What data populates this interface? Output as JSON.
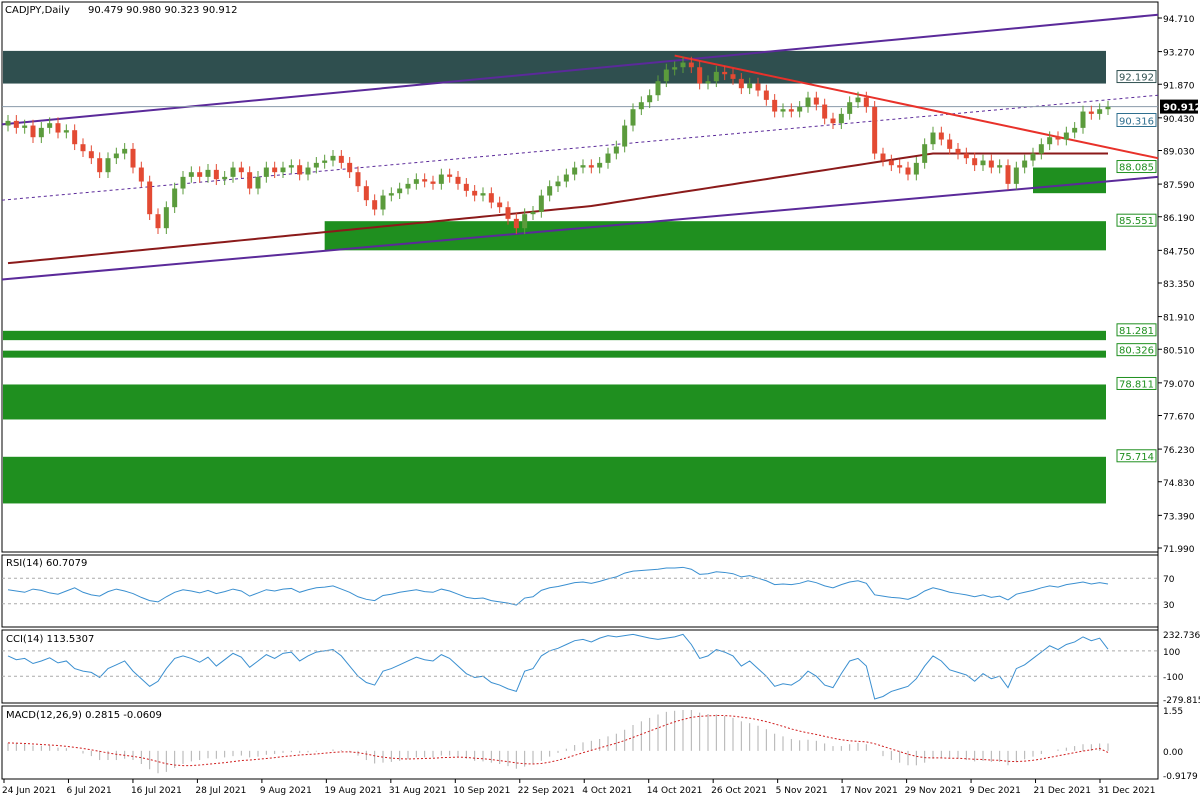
{
  "header": {
    "symbol": "CADJPY,Daily",
    "ohlc": "90.479 90.980 90.323 90.912"
  },
  "colors": {
    "bull": "#5b9b3c",
    "bear": "#e34a33",
    "zone": "#1f8f1f",
    "zone_dark": "#2f4f4f",
    "channel": "#5b2a9a",
    "trend": "#e8312a",
    "ma": "#8b1a1a",
    "rsi": "#3a8fd0",
    "macd_signal": "#d02020",
    "macd_hist": "#b0b0b0"
  },
  "chart_data": [
    {
      "type": "candlestick",
      "title": "CADJPY,Daily 90.479 90.980 90.323 90.912",
      "ylim": [
        71.99,
        95.4
      ],
      "y_ticks": [
        "94.710",
        "93.270",
        "91.870",
        "90.430",
        "89.030",
        "87.590",
        "86.190",
        "84.750",
        "83.350",
        "81.910",
        "80.510",
        "79.070",
        "77.670",
        "76.230",
        "74.830",
        "73.390",
        "71.990"
      ],
      "x_ticks": [
        "24 Jun 2021",
        "6 Jul 2021",
        "16 Jul 2021",
        "28 Jul 2021",
        "9 Aug 2021",
        "19 Aug 2021",
        "31 Aug 2021",
        "10 Sep 2021",
        "22 Sep 2021",
        "4 Oct 2021",
        "14 Oct 2021",
        "26 Oct 2021",
        "5 Nov 2021",
        "17 Nov 2021",
        "29 Nov 2021",
        "9 Dec 2021",
        "21 Dec 2021",
        "31 Dec 2021"
      ],
      "current_price": "90.912",
      "closes": [
        90.3,
        90.0,
        90.1,
        89.6,
        90.0,
        90.2,
        89.8,
        89.9,
        89.3,
        89.0,
        88.7,
        88.1,
        88.7,
        88.9,
        89.1,
        88.3,
        87.7,
        86.3,
        85.7,
        86.6,
        87.4,
        87.9,
        88.1,
        87.9,
        88.2,
        87.8,
        87.9,
        88.3,
        88.1,
        87.4,
        87.9,
        88.3,
        88.1,
        88.3,
        88.4,
        88.0,
        88.3,
        88.5,
        88.6,
        88.8,
        88.5,
        88.1,
        87.5,
        86.9,
        86.5,
        87.1,
        87.2,
        87.4,
        87.6,
        87.8,
        87.7,
        87.6,
        88.0,
        87.9,
        87.6,
        87.3,
        87.1,
        87.2,
        86.8,
        86.6,
        86.1,
        85.7,
        86.3,
        86.4,
        87.1,
        87.5,
        87.7,
        88.0,
        88.3,
        88.4,
        88.3,
        88.5,
        88.9,
        89.2,
        90.1,
        90.8,
        91.1,
        91.4,
        92.0,
        92.5,
        92.6,
        92.8,
        92.6,
        91.9,
        92.0,
        92.4,
        92.3,
        92.1,
        91.7,
        91.9,
        91.6,
        91.2,
        90.7,
        90.8,
        90.7,
        90.9,
        91.3,
        91.0,
        90.4,
        90.2,
        90.6,
        91.1,
        91.3,
        90.9,
        88.9,
        88.6,
        88.4,
        88.3,
        88.0,
        88.5,
        89.3,
        89.8,
        89.5,
        89.1,
        88.9,
        88.7,
        88.4,
        88.6,
        88.3,
        88.4,
        87.6,
        88.3,
        88.6,
        88.9,
        89.3,
        89.6,
        89.5,
        89.8,
        90.0,
        90.7,
        90.6,
        90.8,
        90.9
      ],
      "zones": [
        {
          "label": "92.192",
          "y1": 93.3,
          "y2": 91.9,
          "tone": "dark"
        },
        {
          "label": "88.085",
          "y1": 88.3,
          "y2": 87.2,
          "tone": "green",
          "start_index": 123
        },
        {
          "label": "85.551",
          "y1": 86.0,
          "y2": 84.75,
          "tone": "green",
          "start_index": 38
        },
        {
          "label": "81.281",
          "y1": 81.3,
          "y2": 80.9,
          "tone": "green"
        },
        {
          "label": "80.326",
          "y1": 80.45,
          "y2": 80.15,
          "tone": "green"
        },
        {
          "label": "78.811",
          "y1": 79.0,
          "y2": 77.5,
          "tone": "green"
        },
        {
          "label": "75.714",
          "y1": 75.9,
          "y2": 73.9,
          "tone": "green"
        }
      ],
      "price_labels": [
        "90.316"
      ]
    },
    {
      "type": "line",
      "title": "RSI(14) 60.7079",
      "ylim": [
        0,
        100
      ],
      "y_ticks": [
        "70",
        "30"
      ],
      "values": [
        52,
        50,
        48,
        53,
        51,
        47,
        45,
        50,
        55,
        48,
        44,
        42,
        49,
        53,
        50,
        46,
        40,
        35,
        33,
        41,
        48,
        52,
        50,
        47,
        51,
        46,
        49,
        53,
        50,
        42,
        47,
        52,
        50,
        53,
        54,
        48,
        52,
        55,
        56,
        58,
        53,
        48,
        41,
        37,
        35,
        43,
        45,
        48,
        50,
        52,
        49,
        48,
        53,
        50,
        45,
        40,
        38,
        39,
        35,
        33,
        31,
        28,
        39,
        41,
        51,
        55,
        57,
        60,
        63,
        64,
        62,
        65,
        69,
        72,
        78,
        81,
        82,
        83,
        84,
        86,
        86,
        87,
        84,
        76,
        77,
        80,
        79,
        77,
        72,
        74,
        70,
        66,
        60,
        61,
        60,
        62,
        66,
        63,
        58,
        55,
        60,
        64,
        66,
        62,
        44,
        42,
        40,
        39,
        37,
        42,
        50,
        55,
        52,
        48,
        46,
        44,
        41,
        44,
        40,
        42,
        36,
        45,
        48,
        51,
        55,
        58,
        56,
        60,
        62,
        64,
        61,
        63,
        61
      ]
    },
    {
      "type": "line",
      "title": "CCI(14) 113.5307",
      "ylim": [
        -279.815,
        232.7362
      ],
      "y_ticks": [
        "232.7362",
        "100",
        "-100",
        "-279.815"
      ],
      "values": [
        60,
        30,
        40,
        0,
        20,
        45,
        5,
        20,
        -40,
        -60,
        -70,
        -110,
        -40,
        -10,
        20,
        -60,
        -120,
        -180,
        -140,
        -40,
        40,
        60,
        40,
        10,
        50,
        -20,
        30,
        80,
        50,
        -30,
        20,
        70,
        40,
        80,
        90,
        20,
        60,
        90,
        100,
        110,
        60,
        -20,
        -100,
        -150,
        -170,
        -60,
        -40,
        -10,
        20,
        50,
        30,
        20,
        70,
        40,
        -20,
        -80,
        -110,
        -100,
        -150,
        -170,
        -200,
        -220,
        -60,
        -40,
        60,
        100,
        120,
        150,
        180,
        190,
        170,
        200,
        220,
        210,
        220,
        230,
        215,
        200,
        190,
        200,
        210,
        230,
        150,
        40,
        60,
        110,
        90,
        60,
        -20,
        20,
        -40,
        -100,
        -180,
        -160,
        -170,
        -130,
        -60,
        -100,
        -170,
        -190,
        -80,
        20,
        40,
        -20,
        -280,
        -260,
        -220,
        -200,
        -180,
        -120,
        -20,
        60,
        20,
        -50,
        -70,
        -90,
        -140,
        -80,
        -120,
        -100,
        -190,
        -40,
        -10,
        40,
        90,
        140,
        110,
        150,
        170,
        210,
        180,
        200,
        113
      ]
    },
    {
      "type": "bar",
      "title": "MACD(12,26,9) 0.2815 -0.0609",
      "ylim": [
        -0.9179,
        1.55
      ],
      "y_ticks": [
        "1.55",
        "0.00",
        "-0.9179"
      ],
      "series": [
        {
          "name": "histogram"
        },
        {
          "name": "signal"
        }
      ],
      "histogram": [
        0.3,
        0.3,
        0.28,
        0.2,
        0.2,
        0.2,
        0.12,
        0.1,
        0.0,
        -0.1,
        -0.2,
        -0.35,
        -0.35,
        -0.35,
        -0.3,
        -0.35,
        -0.5,
        -0.7,
        -0.85,
        -0.8,
        -0.65,
        -0.5,
        -0.4,
        -0.35,
        -0.28,
        -0.3,
        -0.25,
        -0.2,
        -0.18,
        -0.25,
        -0.22,
        -0.15,
        -0.12,
        -0.08,
        -0.05,
        -0.08,
        -0.06,
        -0.03,
        0.0,
        0.05,
        0.03,
        -0.05,
        -0.18,
        -0.35,
        -0.48,
        -0.45,
        -0.42,
        -0.38,
        -0.32,
        -0.25,
        -0.25,
        -0.25,
        -0.18,
        -0.18,
        -0.22,
        -0.3,
        -0.38,
        -0.4,
        -0.45,
        -0.5,
        -0.58,
        -0.68,
        -0.6,
        -0.52,
        -0.38,
        -0.22,
        -0.08,
        0.08,
        0.22,
        0.32,
        0.38,
        0.45,
        0.55,
        0.65,
        0.8,
        0.98,
        1.12,
        1.25,
        1.38,
        1.48,
        1.52,
        1.55,
        1.55,
        1.45,
        1.4,
        1.38,
        1.32,
        1.25,
        1.12,
        1.05,
        0.95,
        0.82,
        0.65,
        0.55,
        0.45,
        0.4,
        0.42,
        0.38,
        0.28,
        0.18,
        0.18,
        0.25,
        0.3,
        0.25,
        0.0,
        -0.2,
        -0.35,
        -0.45,
        -0.55,
        -0.55,
        -0.45,
        -0.3,
        -0.25,
        -0.28,
        -0.3,
        -0.35,
        -0.4,
        -0.38,
        -0.42,
        -0.42,
        -0.55,
        -0.42,
        -0.32,
        -0.22,
        -0.12,
        0.0,
        0.05,
        0.12,
        0.18,
        0.25,
        0.25,
        0.28,
        0.28
      ],
      "signal": [
        0.3,
        0.29,
        0.28,
        0.26,
        0.24,
        0.22,
        0.2,
        0.17,
        0.13,
        0.09,
        0.04,
        -0.02,
        -0.08,
        -0.13,
        -0.17,
        -0.21,
        -0.26,
        -0.33,
        -0.41,
        -0.49,
        -0.54,
        -0.56,
        -0.56,
        -0.54,
        -0.51,
        -0.48,
        -0.45,
        -0.41,
        -0.37,
        -0.35,
        -0.32,
        -0.29,
        -0.26,
        -0.22,
        -0.19,
        -0.16,
        -0.14,
        -0.12,
        -0.09,
        -0.06,
        -0.04,
        -0.04,
        -0.07,
        -0.12,
        -0.19,
        -0.24,
        -0.28,
        -0.3,
        -0.31,
        -0.3,
        -0.29,
        -0.28,
        -0.26,
        -0.25,
        -0.24,
        -0.25,
        -0.28,
        -0.3,
        -0.33,
        -0.37,
        -0.41,
        -0.46,
        -0.49,
        -0.5,
        -0.48,
        -0.43,
        -0.36,
        -0.27,
        -0.17,
        -0.07,
        0.02,
        0.11,
        0.2,
        0.29,
        0.39,
        0.51,
        0.63,
        0.75,
        0.87,
        0.99,
        1.1,
        1.19,
        1.27,
        1.31,
        1.33,
        1.34,
        1.34,
        1.32,
        1.28,
        1.24,
        1.18,
        1.11,
        1.02,
        0.93,
        0.83,
        0.75,
        0.68,
        0.62,
        0.55,
        0.48,
        0.42,
        0.38,
        0.36,
        0.34,
        0.27,
        0.17,
        0.07,
        -0.03,
        -0.13,
        -0.21,
        -0.26,
        -0.27,
        -0.27,
        -0.28,
        -0.28,
        -0.3,
        -0.32,
        -0.33,
        -0.35,
        -0.36,
        -0.4,
        -0.41,
        -0.39,
        -0.36,
        -0.31,
        -0.25,
        -0.19,
        -0.13,
        -0.07,
        -0.01,
        0.04,
        0.09,
        -0.06
      ]
    }
  ]
}
